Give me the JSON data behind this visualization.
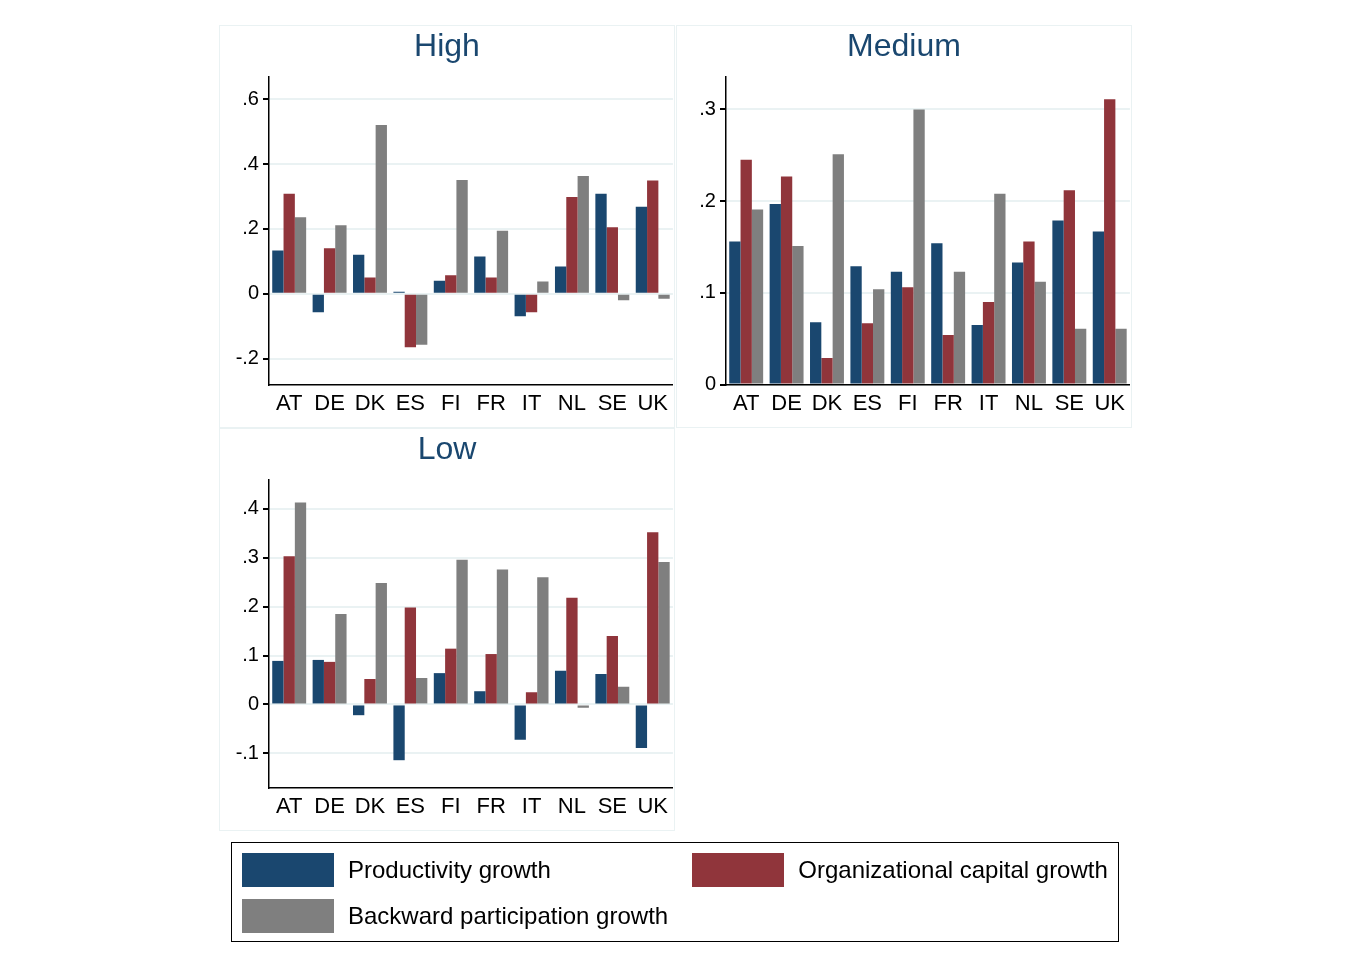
{
  "chart_data": [
    {
      "type": "bar",
      "title": "High",
      "categories": [
        "AT",
        "DE",
        "DK",
        "ES",
        "FI",
        "FR",
        "IT",
        "NL",
        "SE",
        "UK"
      ],
      "series": [
        {
          "name": "Productivity growth",
          "color": "#1a476f",
          "values": [
            0.133,
            -0.057,
            0.12,
            0.006,
            0.04,
            0.115,
            -0.069,
            0.084,
            0.308,
            0.268
          ]
        },
        {
          "name": "Organizational capital growth",
          "color": "#90353b",
          "values": [
            0.308,
            0.14,
            0.05,
            -0.165,
            0.057,
            0.05,
            -0.057,
            0.298,
            0.205,
            0.349
          ]
        },
        {
          "name": "Backward participation growth",
          "color": "#7f7f7f",
          "values": [
            0.236,
            0.211,
            0.52,
            -0.157,
            0.351,
            0.194,
            0.038,
            0.363,
            -0.02,
            -0.015
          ]
        }
      ],
      "ylim": [
        -0.28,
        0.67
      ],
      "yticks": [
        {
          "value": -0.2,
          "label": "-.2"
        },
        {
          "value": 0,
          "label": "0"
        },
        {
          "value": 0.2,
          "label": ".2"
        },
        {
          "value": 0.4,
          "label": ".4"
        },
        {
          "value": 0.6,
          "label": ".6"
        }
      ],
      "grid": "y",
      "legend": "bottom"
    },
    {
      "type": "bar",
      "title": "Medium",
      "categories": [
        "AT",
        "DE",
        "DK",
        "ES",
        "FI",
        "FR",
        "IT",
        "NL",
        "SE",
        "UK"
      ],
      "series": [
        {
          "color": "#1a476f",
          "values": [
            0.156,
            0.197,
            0.068,
            0.129,
            0.123,
            0.154,
            0.065,
            0.133,
            0.179,
            0.167
          ]
        },
        {
          "color": "#90353b",
          "values": [
            0.245,
            0.227,
            0.029,
            0.067,
            0.106,
            0.054,
            0.09,
            0.156,
            0.212,
            0.311
          ]
        },
        {
          "color": "#7f7f7f",
          "values": [
            0.191,
            0.151,
            0.251,
            0.104,
            0.3,
            0.123,
            0.208,
            0.112,
            0.061,
            0.061
          ]
        }
      ],
      "ylim": [
        0,
        0.336
      ],
      "yticks": [
        {
          "value": 0,
          "label": "0"
        },
        {
          "value": 0.1,
          "label": ".1"
        },
        {
          "value": 0.2,
          "label": ".2"
        },
        {
          "value": 0.3,
          "label": ".3"
        }
      ],
      "grid": "y"
    },
    {
      "type": "bar",
      "title": "Low",
      "categories": [
        "AT",
        "DE",
        "DK",
        "ES",
        "FI",
        "FR",
        "IT",
        "NL",
        "SE",
        "UK"
      ],
      "series": [
        {
          "color": "#1a476f",
          "values": [
            0.089,
            0.091,
            -0.022,
            -0.114,
            0.064,
            0.027,
            -0.072,
            0.069,
            0.062,
            -0.089
          ]
        },
        {
          "color": "#90353b",
          "values": [
            0.303,
            0.087,
            0.052,
            0.198,
            0.114,
            0.103,
            0.025,
            0.218,
            0.14,
            0.352
          ]
        },
        {
          "color": "#7f7f7f",
          "values": [
            0.413,
            0.185,
            0.248,
            0.054,
            0.296,
            0.276,
            0.26,
            -0.007,
            0.036,
            0.291
          ]
        }
      ],
      "ylim": [
        -0.17,
        0.46
      ],
      "yticks": [
        {
          "value": -0.1,
          "label": "-.1"
        },
        {
          "value": 0,
          "label": "0"
        },
        {
          "value": 0.1,
          "label": ".1"
        },
        {
          "value": 0.2,
          "label": ".2"
        },
        {
          "value": 0.3,
          "label": ".3"
        },
        {
          "value": 0.4,
          "label": ".4"
        }
      ],
      "grid": "y"
    }
  ]
}
